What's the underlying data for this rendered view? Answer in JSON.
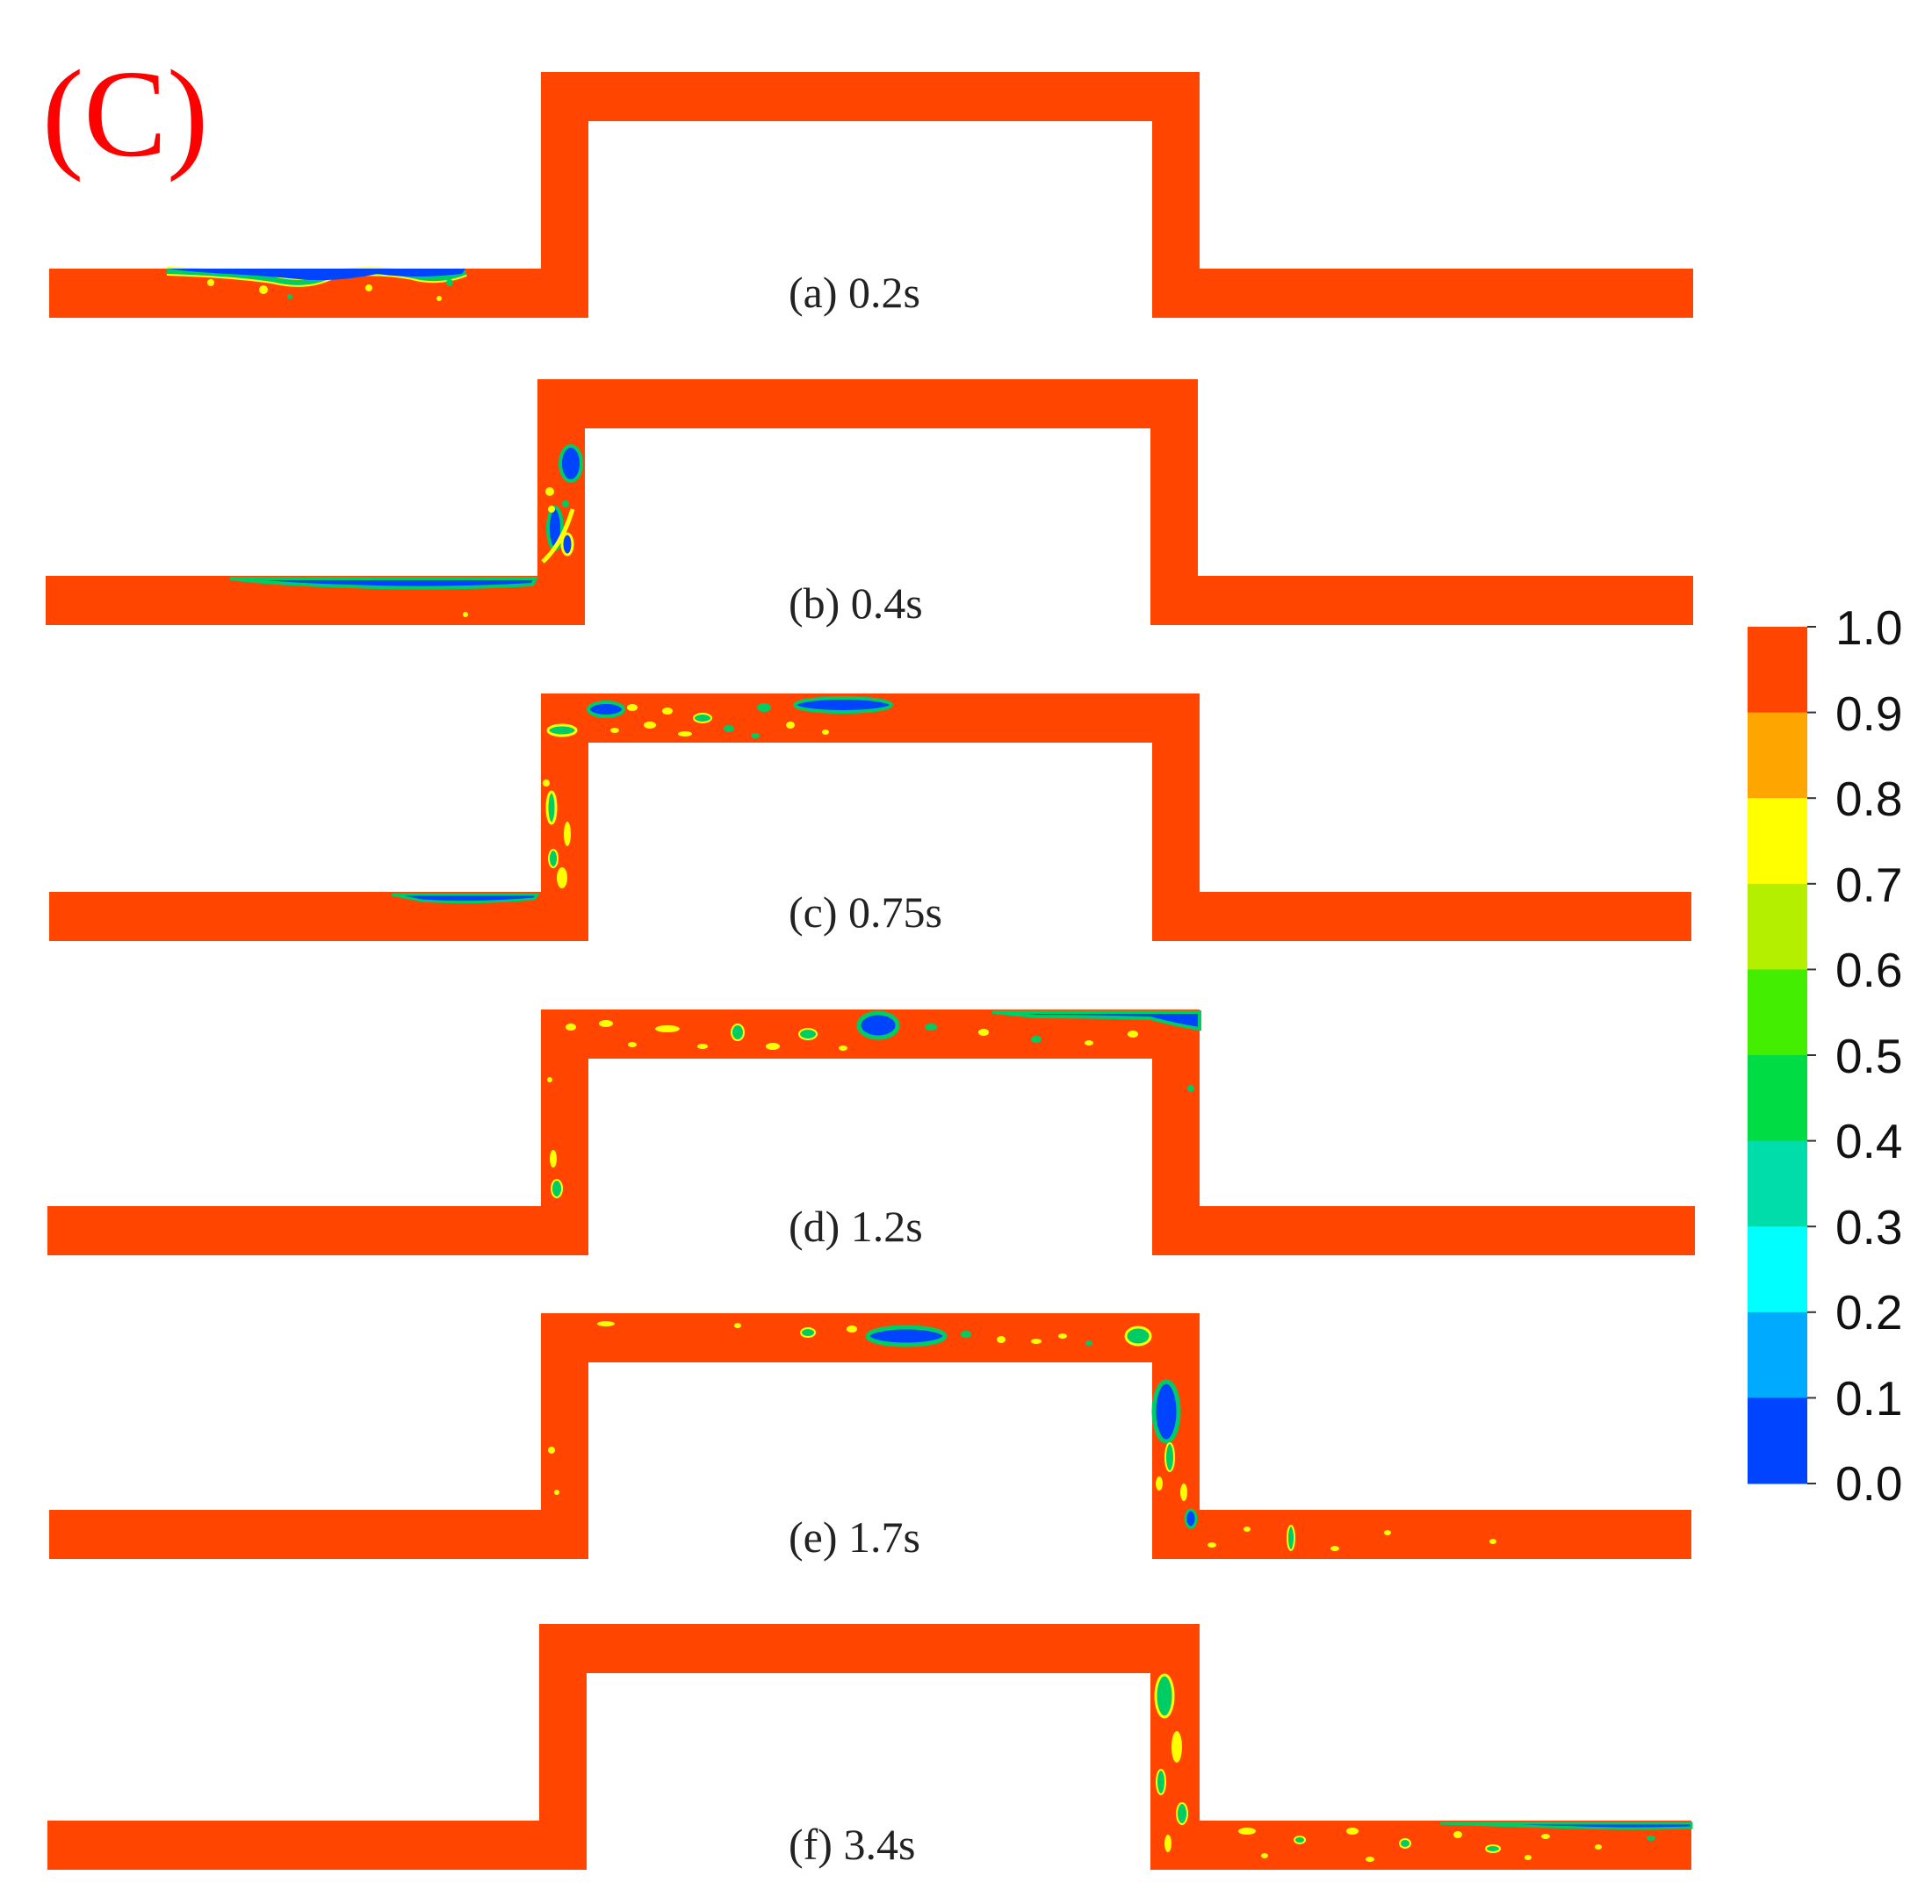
{
  "panel_label": "(C)",
  "frames": [
    {
      "label": "(a) 0.2s"
    },
    {
      "label": "(b) 0.4s"
    },
    {
      "label": "(c) 0.75s"
    },
    {
      "label": "(d) 1.2s"
    },
    {
      "label": "(e) 1.7s"
    },
    {
      "label": "(f) 3.4s"
    }
  ],
  "colorbar": {
    "ticks": [
      "1.0",
      "0.9",
      "0.8",
      "0.7",
      "0.6",
      "0.5",
      "0.4",
      "0.3",
      "0.2",
      "0.1",
      "0.0"
    ],
    "colors": [
      "#ff4500",
      "#ffa500",
      "#ffff00",
      "#b5ef00",
      "#44ee00",
      "#00dd44",
      "#00ddaa",
      "#00ffff",
      "#00aaff",
      "#0044ff"
    ]
  },
  "colors": {
    "liquid": "#ff4500",
    "gas": "#0044ff",
    "interface_mid": "#00cc66",
    "interface_light": "#ffff00"
  }
}
